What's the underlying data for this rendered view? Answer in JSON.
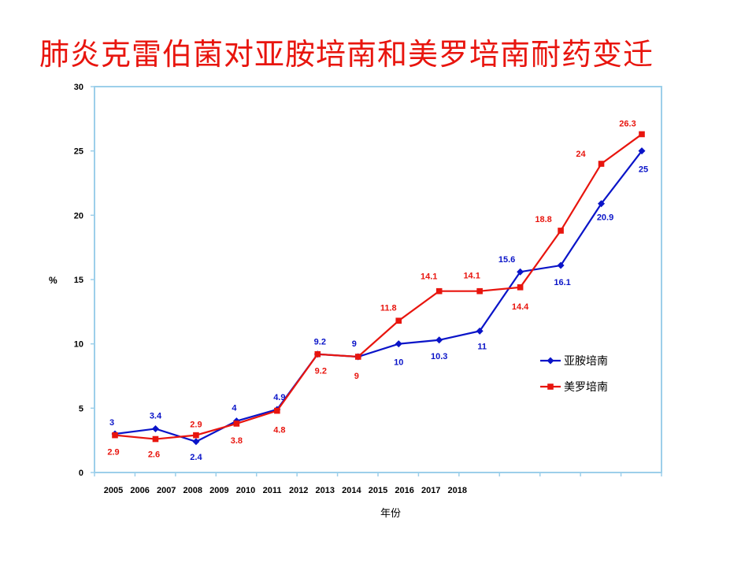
{
  "title": "肺炎克雷伯菌对亚胺培南和美罗培南耐药变迁",
  "chart_data": {
    "type": "line",
    "title": "肺炎克雷伯菌对亚胺培南和美罗培南耐药变迁",
    "xlabel": "年份",
    "ylabel": "%",
    "ylim": [
      0,
      30
    ],
    "yticks": [
      0,
      5,
      10,
      15,
      20,
      25,
      30
    ],
    "x_tick_labels": [
      "2005",
      "2006",
      "2007",
      "2008",
      "2009",
      "2010",
      "2011",
      "2012",
      "2013",
      "2014",
      "2015",
      "2016",
      "2017",
      "2018"
    ],
    "grid": false,
    "legend_position": "right",
    "series": [
      {
        "name": "亚胺培南",
        "color": "#0a14c8",
        "marker": "diamond",
        "values": [
          3,
          3.4,
          2.4,
          4,
          4.9,
          9.2,
          9,
          10,
          10.3,
          11,
          15.6,
          16.1,
          20.9,
          25
        ],
        "labels": [
          "3",
          "3.4",
          "2.4",
          "4",
          "4.9",
          "9.2",
          "9",
          "10",
          "10.3",
          "11",
          "15.6",
          "16.1",
          "20.9",
          "25"
        ]
      },
      {
        "name": "美罗培南",
        "color": "#e8150e",
        "marker": "square",
        "values": [
          2.9,
          2.6,
          2.9,
          3.8,
          4.8,
          9.2,
          9,
          11.8,
          14.1,
          14.1,
          14.4,
          18.8,
          24,
          26.3
        ],
        "labels": [
          "2.9",
          "2.6",
          "2.9",
          "3.8",
          "4.8",
          "9.2",
          "9",
          "11.8",
          "14.1",
          "14.1",
          "14.4",
          "18.8",
          "24",
          "26.3"
        ]
      }
    ]
  }
}
